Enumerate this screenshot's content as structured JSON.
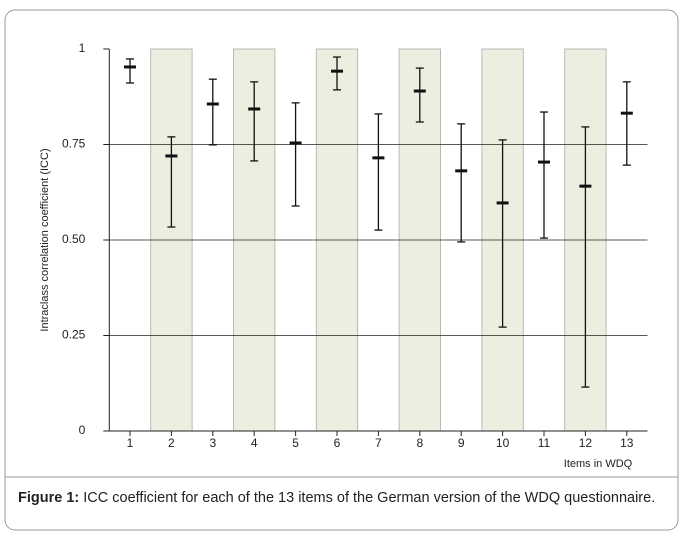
{
  "chart_data": {
    "type": "errorbar",
    "ylabel": "Intraclass correlation coefficient (ICC)",
    "xlabel": "Items in WDQ",
    "categories": [
      "1",
      "2",
      "3",
      "4",
      "5",
      "6",
      "7",
      "8",
      "9",
      "10",
      "11",
      "12",
      "13"
    ],
    "values": [
      0.953,
      0.72,
      0.856,
      0.843,
      0.754,
      0.942,
      0.715,
      0.89,
      0.681,
      0.597,
      0.704,
      0.641,
      0.832
    ],
    "ci_lower": [
      0.911,
      0.534,
      0.749,
      0.707,
      0.589,
      0.893,
      0.526,
      0.809,
      0.495,
      0.272,
      0.505,
      0.115,
      0.696
    ],
    "ci_upper": [
      0.974,
      0.77,
      0.921,
      0.914,
      0.859,
      0.979,
      0.83,
      0.95,
      0.804,
      0.762,
      0.835,
      0.796,
      0.914
    ],
    "color": "#111111",
    "band_color": "#ecefdf",
    "ylim": [
      0,
      1
    ],
    "yticks": [
      0,
      0.25,
      {
        "value": 0.5,
        "label": "0.50"
      },
      0.75,
      1
    ],
    "grid": true
  },
  "caption": {
    "label": "Figure 1:",
    "text": "ICC coefficient for each of the 13 items of the German version of the WDQ questionnaire."
  }
}
